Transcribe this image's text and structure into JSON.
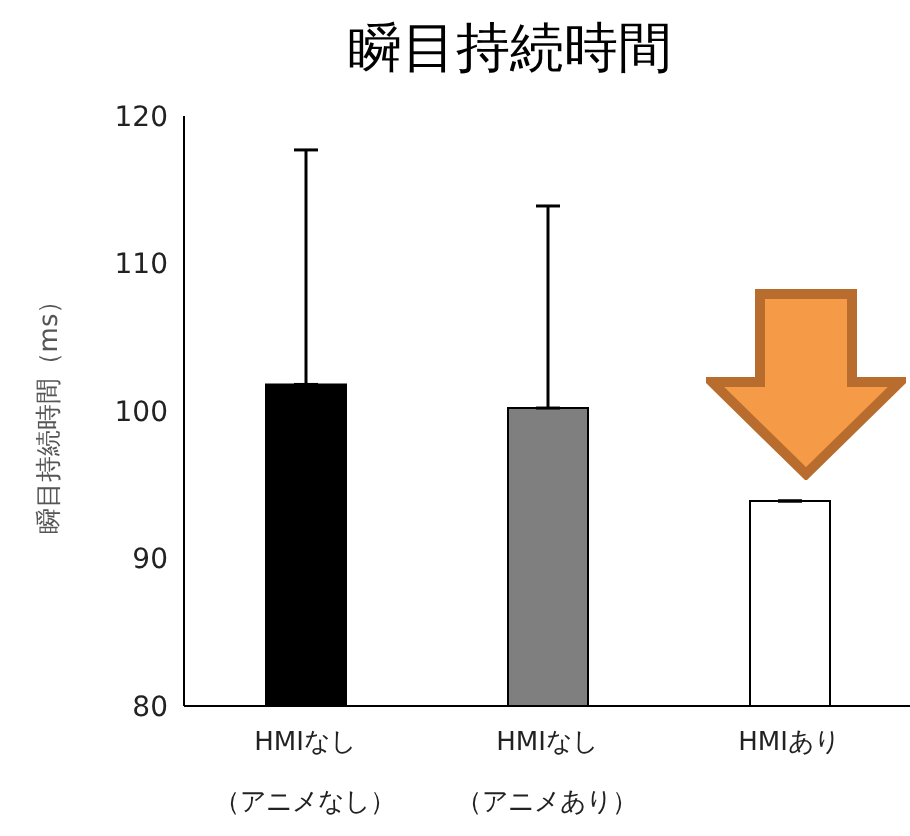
{
  "chart_data": {
    "type": "bar",
    "title": "瞬目持続時間",
    "ylabel": "瞬目持続時間（ms）",
    "categories": [
      "HMIなし（アニメなし）",
      "HMIなし（アニメあり）",
      "HMIあり"
    ],
    "values": [
      101.8,
      100.2,
      93.9
    ],
    "colors": [
      "#000000",
      "#7f7f7f",
      "#ffffff"
    ],
    "errors": [
      [
        101.8,
        117.7
      ],
      [
        100.2,
        113.9
      ],
      null
    ],
    "ylim": [
      80,
      120
    ],
    "yticks": [
      80,
      90,
      100,
      110,
      120
    ],
    "grid": false,
    "legend": false
  }
}
